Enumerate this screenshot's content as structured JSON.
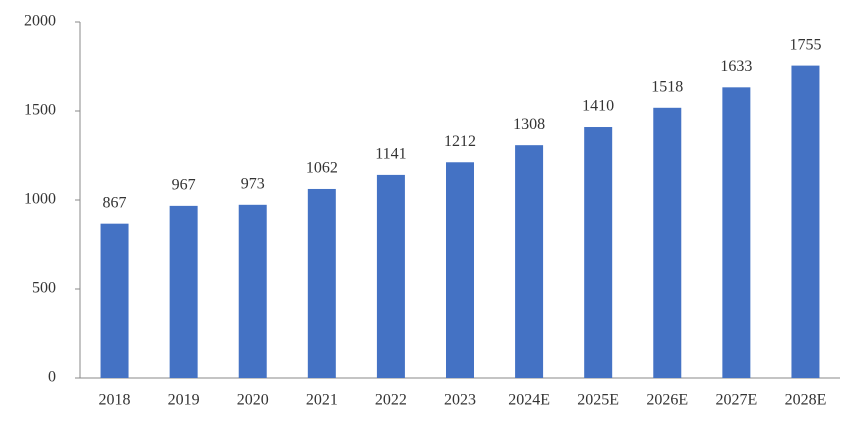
{
  "chart_data": {
    "type": "bar",
    "categories": [
      "2018",
      "2019",
      "2020",
      "2021",
      "2022",
      "2023",
      "2024E",
      "2025E",
      "2026E",
      "2027E",
      "2028E"
    ],
    "values": [
      867,
      967,
      973,
      1062,
      1141,
      1212,
      1308,
      1410,
      1518,
      1633,
      1755
    ],
    "color": "#4472c4",
    "ylim": [
      0,
      2000
    ],
    "yticks": [
      0,
      500,
      1000,
      1500,
      2000
    ],
    "grid": false
  }
}
